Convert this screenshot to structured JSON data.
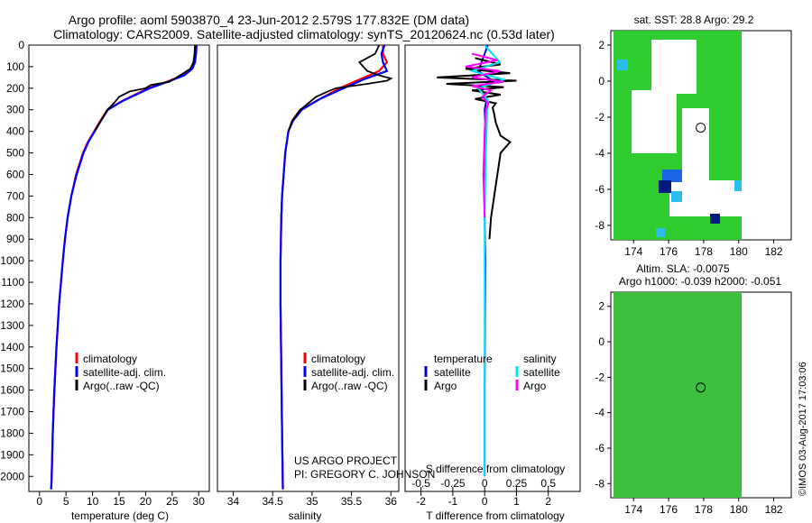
{
  "header": {
    "title_line1": "Argo profile: aoml 5903870_4 23-Jun-2012 2.579S 177.832E (DM data)",
    "title_line2": "Climatology: CARS2009. Satellite-adjusted climatology: synTS_20120624.nc (0.53d later)"
  },
  "colors": {
    "climatology": "#ff0000",
    "satellite": "#0000ff",
    "argo": "#000000",
    "temp_satellite": "#0000cc",
    "sal_satellite": "#00e5ee",
    "sal_argo": "#ff00ff",
    "map_green": "#2fcc2f",
    "map_sla_green": "#3fbf3f"
  },
  "depth_axis": {
    "ticks": [
      "0",
      "100",
      "200",
      "300",
      "400",
      "500",
      "600",
      "700",
      "800",
      "900",
      "1000",
      "1100",
      "1200",
      "1300",
      "1400",
      "1500",
      "1600",
      "1700",
      "1800",
      "1900",
      "2000"
    ],
    "range": [
      0,
      2070
    ]
  },
  "chart_data": [
    {
      "type": "line",
      "name": "temperature-profile",
      "xlabel": "temperature (deg C)",
      "xlim": [
        -2,
        32
      ],
      "xticks": [
        "0",
        "5",
        "10",
        "15",
        "20",
        "25",
        "30"
      ],
      "ylim": [
        2070,
        0
      ],
      "legend": [
        "climatology",
        "satellite-adj. clim.",
        "Argo(..raw -QC)"
      ],
      "series": [
        {
          "name": "climatology",
          "depth": [
            0,
            40,
            80,
            110,
            140,
            170,
            200,
            230,
            260,
            300,
            350,
            400,
            450,
            500,
            600,
            700,
            800,
            900,
            1000,
            1200,
            1400,
            1600,
            1800,
            2000,
            2060
          ],
          "values": [
            29.5,
            29.4,
            29.2,
            28.6,
            27.0,
            24.0,
            20.5,
            18.0,
            15.5,
            12.8,
            11.5,
            10.3,
            9.1,
            8.2,
            6.9,
            6.0,
            5.3,
            4.8,
            4.4,
            3.7,
            3.2,
            2.8,
            2.5,
            2.3,
            2.2
          ]
        },
        {
          "name": "satellite-adj. clim.",
          "depth": [
            0,
            40,
            80,
            110,
            140,
            170,
            200,
            230,
            260,
            300,
            350,
            400,
            450,
            500,
            600,
            700,
            800,
            900,
            1000,
            1200,
            1400,
            1600,
            1800,
            2000,
            2060
          ],
          "values": [
            29.6,
            29.5,
            29.3,
            28.8,
            27.3,
            24.2,
            20.8,
            18.2,
            15.6,
            12.9,
            11.6,
            10.4,
            9.2,
            8.3,
            7.0,
            6.0,
            5.3,
            4.8,
            4.4,
            3.7,
            3.2,
            2.8,
            2.5,
            2.3,
            2.2
          ]
        },
        {
          "name": "Argo(..raw -QC)",
          "depth": [
            0,
            40,
            80,
            110,
            140,
            170,
            185,
            200,
            215,
            240,
            270,
            300,
            350,
            400
          ],
          "values": [
            29.3,
            29.2,
            29.0,
            28.4,
            26.5,
            24.5,
            21.0,
            20.0,
            17.0,
            15.0,
            14.0,
            12.8,
            11.6,
            10.4
          ]
        }
      ]
    },
    {
      "type": "line",
      "name": "salinity-profile",
      "xlabel": "salinity",
      "xlim": [
        33.8,
        36.1
      ],
      "xticks": [
        "34",
        "34.5",
        "35",
        "35.5",
        "36"
      ],
      "ylim": [
        2070,
        0
      ],
      "legend": [
        "climatology",
        "satellite-adj. clim.",
        "Argo(..raw -QC)"
      ],
      "series": [
        {
          "name": "climatology",
          "depth": [
            0,
            40,
            80,
            120,
            160,
            200,
            250,
            300,
            350,
            400,
            500,
            600,
            700,
            800,
            1000,
            1200,
            1500,
            1800,
            2060
          ],
          "values": [
            35.9,
            35.9,
            35.95,
            35.85,
            35.6,
            35.35,
            35.1,
            34.85,
            34.75,
            34.7,
            34.66,
            34.64,
            34.62,
            34.61,
            34.6,
            34.6,
            34.61,
            34.62,
            34.63
          ]
        },
        {
          "name": "satellite-adj. clim.",
          "depth": [
            0,
            40,
            80,
            120,
            160,
            200,
            250,
            300,
            350,
            400,
            500,
            600,
            700,
            800,
            1000,
            1200,
            1500,
            1800,
            2060
          ],
          "values": [
            35.92,
            35.88,
            35.9,
            35.95,
            35.65,
            35.4,
            35.1,
            34.87,
            34.76,
            34.7,
            34.66,
            34.64,
            34.62,
            34.61,
            34.6,
            34.6,
            34.61,
            34.62,
            34.63
          ]
        },
        {
          "name": "Argo(..raw -QC)",
          "depth": [
            0,
            40,
            80,
            120,
            140,
            155,
            165,
            180,
            200,
            215,
            240,
            270,
            300,
            350,
            400
          ],
          "values": [
            35.85,
            35.8,
            35.6,
            35.7,
            35.85,
            36.0,
            35.95,
            35.7,
            35.3,
            35.2,
            35.05,
            34.95,
            34.85,
            34.75,
            34.7
          ]
        }
      ],
      "annotation": [
        "US ARGO PROJECT",
        "PI: GREGORY C. JOHNSON"
      ]
    },
    {
      "type": "line",
      "name": "difference-profile",
      "xlabel_bottom": "T difference from climatology",
      "xlabel_top": "S difference from climatology",
      "xlim": [
        -2.5,
        3.0
      ],
      "xticks": [
        "-2",
        "-1",
        "0",
        "1",
        "2"
      ],
      "top_xticks": [
        "-0.5",
        "-0.25",
        "0",
        "0.25",
        "0.5"
      ],
      "top_scale": 4,
      "ylim": [
        2070,
        0
      ],
      "legend": {
        "left_title": "temperature",
        "right_title": "salinity",
        "left": [
          "satellite",
          "Argo"
        ],
        "right": [
          "satellite",
          "Argo"
        ]
      },
      "series": [
        {
          "name": "T satellite",
          "depth": [
            0,
            80,
            120,
            160,
            200,
            260,
            300,
            400,
            600,
            1000,
            1600,
            2000
          ],
          "values": [
            0.1,
            -0.1,
            -0.2,
            0.2,
            -0.1,
            0.05,
            0.0,
            0.03,
            -0.02,
            0.02,
            0.0,
            0.0
          ]
        },
        {
          "name": "T Argo",
          "depth": [
            60,
            90,
            110,
            130,
            150,
            165,
            180,
            195,
            210,
            230,
            250,
            270,
            290,
            320,
            360,
            420,
            450,
            500,
            600,
            700,
            800,
            900
          ],
          "values": [
            -0.3,
            0.5,
            -0.6,
            0.8,
            -1.5,
            1.0,
            -1.2,
            0.6,
            -0.4,
            0.5,
            -0.3,
            0.35,
            0.25,
            0.3,
            0.35,
            0.5,
            0.8,
            0.5,
            0.4,
            0.3,
            0.2,
            0.15
          ]
        },
        {
          "name": "S satellite",
          "depth": [
            0,
            80,
            120,
            160,
            200,
            260,
            300,
            500,
            800,
            1000,
            1500,
            2000
          ],
          "values": [
            0.0,
            0.12,
            -0.1,
            0.15,
            -0.05,
            0.03,
            0.02,
            0.01,
            0.0,
            0.0,
            0.0,
            0.0
          ]
        },
        {
          "name": "S Argo",
          "depth": [
            40,
            70,
            100,
            120,
            150,
            170,
            190,
            210,
            240,
            270,
            300,
            400,
            600,
            800
          ],
          "values": [
            -0.1,
            0.1,
            -0.15,
            0.12,
            -0.1,
            0.15,
            -0.1,
            0.05,
            -0.02,
            0.03,
            0.01,
            0.0,
            -0.01,
            0.0
          ]
        }
      ]
    },
    {
      "type": "heatmap",
      "name": "sst-map",
      "title": "sat. SST: 28.8 Argo: 29.2",
      "xlim": [
        172.7,
        183.0
      ],
      "ylim": [
        -8.8,
        2.8
      ],
      "xticks": [
        "174",
        "176",
        "178",
        "180",
        "182"
      ],
      "yticks": [
        "2",
        "0",
        "-2",
        "-4",
        "-6",
        "-8"
      ],
      "argo_position": [
        177.832,
        -2.579
      ]
    },
    {
      "type": "heatmap",
      "name": "sla-map",
      "title": "Altim. SLA: -0.0075",
      "subtitle": "Argo h1000: -0.039 h2000: -0.051",
      "xlim": [
        172.7,
        183.0
      ],
      "ylim": [
        -8.8,
        2.8
      ],
      "xticks": [
        "174",
        "176",
        "178",
        "180",
        "182"
      ],
      "yticks": [
        "2",
        "0",
        "-2",
        "-4",
        "-6",
        "-8"
      ],
      "argo_position": [
        177.832,
        -2.579
      ]
    }
  ],
  "credit": "©IMOS 03-Aug-2017 17:03:06"
}
